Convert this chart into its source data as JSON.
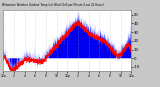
{
  "title": "Milwaukee Weather Outdoor Temp (vs) Wind Chill per Minute (Last 24 Hours)",
  "bg_color": "#c8c8c8",
  "plot_bg_color": "#ffffff",
  "bar_color": "#0000ee",
  "line_color": "#ff0000",
  "grid_color": "#aaaaaa",
  "text_color": "#000000",
  "spine_color": "#888888",
  "ylim": [
    -15,
    55
  ],
  "yticks": [
    -10,
    0,
    10,
    20,
    30,
    40,
    50
  ],
  "xlim": [
    0,
    1440
  ],
  "n_points": 1440
}
